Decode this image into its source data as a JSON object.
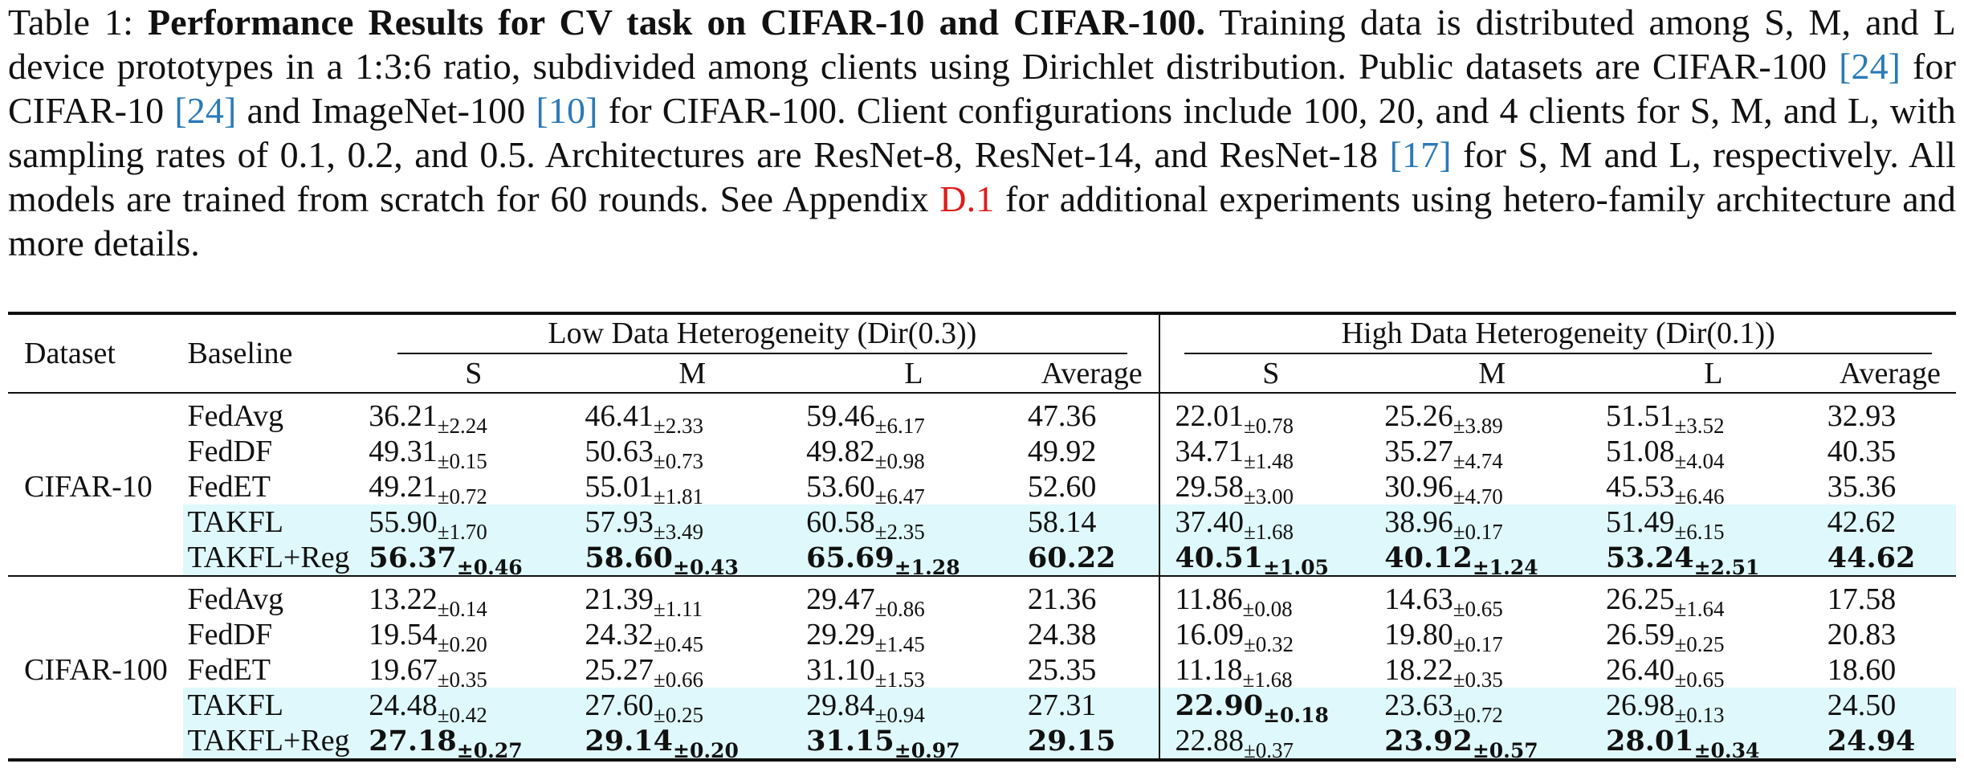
{
  "caption": {
    "label": "Table 1:",
    "title": "Performance Results for CV task on CIFAR-10 and CIFAR-100.",
    "seg1": " Training data is distributed among S, M, and L device prototypes in a 1:3:6 ratio, subdivided among clients using Dirichlet distribution. Public datasets are CIFAR-100 ",
    "cite1": "[24]",
    "seg2": " for CIFAR-10 ",
    "cite2": "[24]",
    "seg3": " and ImageNet-100 ",
    "cite3": "[10]",
    "seg4": " for CIFAR-100. Client configurations include 100, 20, and 4 clients for S, M, and L, with sampling rates of 0.1, 0.2, and 0.5. Architectures are ResNet-8, ResNet-14, and ResNet-18 ",
    "cite4": "[17]",
    "seg5": " for S, M and L, respectively. All models are trained from scratch for 60 rounds. See Appendix ",
    "appendix_ref": "D.1",
    "seg6": " for additional experiments using hetero-family architecture and more details.",
    "accent_colors": {
      "citation": "#2a7ab8",
      "appendix": "#e01b1b",
      "highlight": "#dff8fb"
    }
  },
  "table": {
    "headers": {
      "dataset": "Dataset",
      "baseline": "Baseline",
      "group_low": "Low Data Heterogeneity (Dir(0.3))",
      "group_high": "High Data Heterogeneity (Dir(0.1))",
      "cols": [
        "S",
        "M",
        "L",
        "Average"
      ]
    },
    "groups": [
      {
        "dataset": "CIFAR-10",
        "rows": [
          {
            "name": "FedAvg",
            "highlight": false,
            "low": [
              {
                "v": "36.21",
                "pm": "±2.24"
              },
              {
                "v": "46.41",
                "pm": "±2.33"
              },
              {
                "v": "59.46",
                "pm": "±6.17"
              }
            ],
            "low_avg": "47.36",
            "high": [
              {
                "v": "22.01",
                "pm": "±0.78"
              },
              {
                "v": "25.26",
                "pm": "±3.89"
              },
              {
                "v": "51.51",
                "pm": "±3.52"
              }
            ],
            "high_avg": "32.93"
          },
          {
            "name": "FedDF",
            "highlight": false,
            "low": [
              {
                "v": "49.31",
                "pm": "±0.15"
              },
              {
                "v": "50.63",
                "pm": "±0.73"
              },
              {
                "v": "49.82",
                "pm": "±0.98"
              }
            ],
            "low_avg": "49.92",
            "high": [
              {
                "v": "34.71",
                "pm": "±1.48"
              },
              {
                "v": "35.27",
                "pm": "±4.74"
              },
              {
                "v": "51.08",
                "pm": "±4.04"
              }
            ],
            "high_avg": "40.35"
          },
          {
            "name": "FedET",
            "highlight": false,
            "low": [
              {
                "v": "49.21",
                "pm": "±0.72"
              },
              {
                "v": "55.01",
                "pm": "±1.81"
              },
              {
                "v": "53.60",
                "pm": "±6.47"
              }
            ],
            "low_avg": "52.60",
            "high": [
              {
                "v": "29.58",
                "pm": "±3.00"
              },
              {
                "v": "30.96",
                "pm": "±4.70"
              },
              {
                "v": "45.53",
                "pm": "±6.46"
              }
            ],
            "high_avg": "35.36"
          },
          {
            "name": "TAKFL",
            "highlight": true,
            "low": [
              {
                "v": "55.90",
                "pm": "±1.70"
              },
              {
                "v": "57.93",
                "pm": "±3.49"
              },
              {
                "v": "60.58",
                "pm": "±2.35"
              }
            ],
            "low_avg": "58.14",
            "high": [
              {
                "v": "37.40",
                "pm": "±1.68"
              },
              {
                "v": "38.96",
                "pm": "±0.17"
              },
              {
                "v": "51.49",
                "pm": "±6.15"
              }
            ],
            "high_avg": "42.62"
          },
          {
            "name": "TAKFL+Reg",
            "highlight": true,
            "low": [
              {
                "v": "56.37",
                "pm": "±0.46",
                "b": true
              },
              {
                "v": "58.60",
                "pm": "±0.43",
                "b": true
              },
              {
                "v": "65.69",
                "pm": "±1.28",
                "b": true
              }
            ],
            "low_avg": "60.22",
            "low_avg_b": true,
            "high": [
              {
                "v": "40.51",
                "pm": "±1.05",
                "b": true
              },
              {
                "v": "40.12",
                "pm": "±1.24",
                "b": true
              },
              {
                "v": "53.24",
                "pm": "±2.51",
                "b": true
              }
            ],
            "high_avg": "44.62",
            "high_avg_b": true
          }
        ]
      },
      {
        "dataset": "CIFAR-100",
        "rows": [
          {
            "name": "FedAvg",
            "highlight": false,
            "low": [
              {
                "v": "13.22",
                "pm": "±0.14"
              },
              {
                "v": "21.39",
                "pm": "±1.11"
              },
              {
                "v": "29.47",
                "pm": "±0.86"
              }
            ],
            "low_avg": "21.36",
            "high": [
              {
                "v": "11.86",
                "pm": "±0.08"
              },
              {
                "v": "14.63",
                "pm": "±0.65"
              },
              {
                "v": "26.25",
                "pm": "±1.64"
              }
            ],
            "high_avg": "17.58"
          },
          {
            "name": "FedDF",
            "highlight": false,
            "low": [
              {
                "v": "19.54",
                "pm": "±0.20"
              },
              {
                "v": "24.32",
                "pm": "±0.45"
              },
              {
                "v": "29.29",
                "pm": "±1.45"
              }
            ],
            "low_avg": "24.38",
            "high": [
              {
                "v": "16.09",
                "pm": "±0.32"
              },
              {
                "v": "19.80",
                "pm": "±0.17"
              },
              {
                "v": "26.59",
                "pm": "±0.25"
              }
            ],
            "high_avg": "20.83"
          },
          {
            "name": "FedET",
            "highlight": false,
            "low": [
              {
                "v": "19.67",
                "pm": "±0.35"
              },
              {
                "v": "25.27",
                "pm": "±0.66"
              },
              {
                "v": "31.10",
                "pm": "±1.53"
              }
            ],
            "low_avg": "25.35",
            "high": [
              {
                "v": "11.18",
                "pm": "±1.68"
              },
              {
                "v": "18.22",
                "pm": "±0.35"
              },
              {
                "v": "26.40",
                "pm": "±0.65"
              }
            ],
            "high_avg": "18.60"
          },
          {
            "name": "TAKFL",
            "highlight": true,
            "low": [
              {
                "v": "24.48",
                "pm": "±0.42"
              },
              {
                "v": "27.60",
                "pm": "±0.25"
              },
              {
                "v": "29.84",
                "pm": "±0.94"
              }
            ],
            "low_avg": "27.31",
            "high": [
              {
                "v": "22.90",
                "pm": "±0.18",
                "b": true
              },
              {
                "v": "23.63",
                "pm": "±0.72"
              },
              {
                "v": "26.98",
                "pm": "±0.13"
              }
            ],
            "high_avg": "24.50"
          },
          {
            "name": "TAKFL+Reg",
            "highlight": true,
            "low": [
              {
                "v": "27.18",
                "pm": "±0.27",
                "b": true
              },
              {
                "v": "29.14",
                "pm": "±0.20",
                "b": true
              },
              {
                "v": "31.15",
                "pm": "±0.97",
                "b": true
              }
            ],
            "low_avg": "29.15",
            "low_avg_b": true,
            "high": [
              {
                "v": "22.88",
                "pm": "±0.37"
              },
              {
                "v": "23.92",
                "pm": "±0.57",
                "b": true
              },
              {
                "v": "28.01",
                "pm": "±0.34",
                "b": true
              }
            ],
            "high_avg": "24.94",
            "high_avg_b": true
          }
        ]
      }
    ]
  }
}
